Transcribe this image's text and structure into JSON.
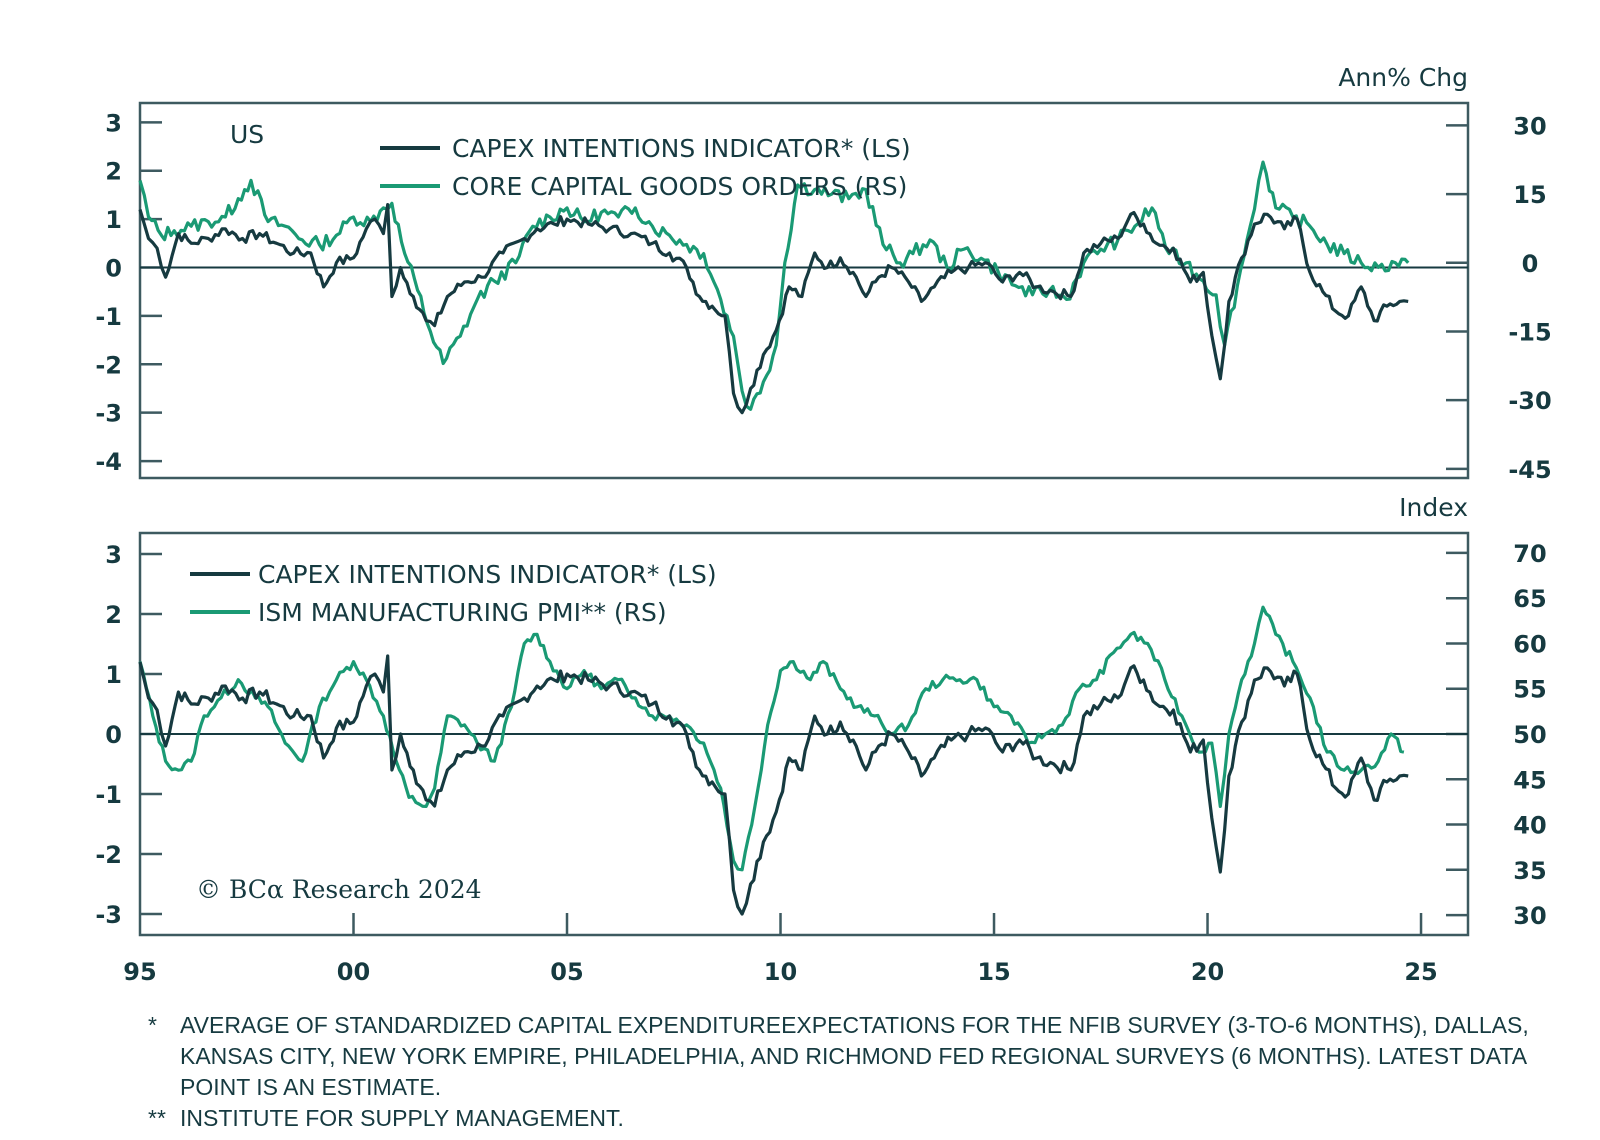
{
  "chart_data": [
    {
      "type": "line",
      "id": "top",
      "title": "",
      "region_label": "US",
      "right_unit_label": "Ann% Chg",
      "x_range": [
        1995,
        2026.1
      ],
      "xlabel": "",
      "y_left": {
        "range": [
          -4.35,
          3.4
        ],
        "ticks": [
          3,
          2,
          1,
          0,
          -1,
          -2,
          -3,
          -4
        ],
        "tick_labels": [
          "3",
          "2",
          "1",
          "0",
          "-1",
          "-2",
          "-3",
          "-4"
        ]
      },
      "y_right": {
        "range": [
          -47,
          34.9
        ],
        "ticks": [
          30,
          15,
          0,
          -15,
          -30,
          -45
        ],
        "tick_labels": [
          "30",
          "15",
          "0",
          "-15",
          "-30",
          "-45"
        ]
      },
      "zero_line": true,
      "legend": {
        "placement": "top-center",
        "entries": [
          {
            "label": "CAPEX INTENTIONS INDICATOR* (LS)",
            "color": "#163a40"
          },
          {
            "label": "CORE CAPITAL GOODS ORDERS (RS)",
            "color": "#1a9a74"
          }
        ]
      },
      "series": [
        {
          "name": "CAPEX INTENTIONS INDICATOR* (LS)",
          "axis": "left",
          "color": "#163a40",
          "x": [
            1995.0,
            1995.2,
            1995.4,
            1995.6,
            1995.9,
            1996.2,
            1996.6,
            1997.0,
            1997.4,
            1997.8,
            1998.2,
            1998.6,
            1999.0,
            1999.3,
            1999.6,
            2000.0,
            2000.3,
            2000.5,
            2000.7,
            2000.8,
            2000.9,
            2001.1,
            2001.4,
            2001.7,
            2001.9,
            2002.2,
            2002.6,
            2003.0,
            2003.5,
            2004.0,
            2004.3,
            2004.7,
            2005.0,
            2005.5,
            2006.0,
            2006.5,
            2007.0,
            2007.4,
            2007.8,
            2008.1,
            2008.4,
            2008.7,
            2008.9,
            2009.1,
            2009.3,
            2009.6,
            2009.9,
            2010.2,
            2010.5,
            2010.8,
            2011.1,
            2011.4,
            2011.7,
            2012.0,
            2012.3,
            2012.6,
            2013.0,
            2013.3,
            2013.6,
            2014.0,
            2014.4,
            2014.8,
            2015.2,
            2015.6,
            2016.0,
            2016.4,
            2016.8,
            2017.1,
            2017.5,
            2017.9,
            2018.2,
            2018.5,
            2018.8,
            2019.2,
            2019.6,
            2019.9,
            2020.1,
            2020.3,
            2020.5,
            2020.8,
            2021.1,
            2021.4,
            2021.8,
            2022.1,
            2022.4,
            2022.7,
            2023.0,
            2023.3,
            2023.6,
            2023.9,
            2024.2,
            2024.5,
            2024.7
          ],
          "y": [
            1.2,
            0.6,
            0.4,
            -0.2,
            0.7,
            0.5,
            0.6,
            0.8,
            0.6,
            0.7,
            0.5,
            0.3,
            0.3,
            -0.4,
            0.1,
            0.2,
            0.8,
            1.0,
            0.7,
            1.3,
            -0.6,
            0.0,
            -0.6,
            -1.1,
            -1.2,
            -0.6,
            -0.3,
            -0.2,
            0.3,
            0.6,
            0.8,
            0.9,
            1.0,
            0.9,
            0.8,
            0.7,
            0.5,
            0.3,
            0.0,
            -0.6,
            -0.8,
            -1.0,
            -2.6,
            -3.0,
            -2.5,
            -1.8,
            -1.3,
            -0.4,
            -0.6,
            0.3,
            0.0,
            0.2,
            -0.1,
            -0.6,
            -0.2,
            0.0,
            -0.3,
            -0.7,
            -0.4,
            -0.1,
            0.0,
            0.1,
            -0.3,
            -0.1,
            -0.4,
            -0.5,
            -0.6,
            0.3,
            0.5,
            0.6,
            1.1,
            0.9,
            0.5,
            0.4,
            -0.3,
            -0.1,
            -1.4,
            -2.3,
            -0.7,
            0.2,
            0.9,
            1.1,
            0.8,
            1.0,
            -0.1,
            -0.5,
            -0.9,
            -1.0,
            -0.4,
            -1.1,
            -0.8,
            -0.7,
            -0.7
          ]
        },
        {
          "name": "CORE CAPITAL GOODS ORDERS (RS)",
          "axis": "right",
          "color": "#1a9a74",
          "x": [
            1995.0,
            1995.2,
            1995.5,
            1995.8,
            1996.2,
            1996.6,
            1997.0,
            1997.3,
            1997.6,
            1998.0,
            1998.4,
            1998.8,
            1999.2,
            1999.6,
            2000.0,
            2000.4,
            2000.7,
            2000.9,
            2001.2,
            2001.5,
            2001.8,
            2002.1,
            2002.5,
            2002.9,
            2003.3,
            2003.8,
            2004.2,
            2004.6,
            2005.0,
            2005.4,
            2005.8,
            2006.2,
            2006.6,
            2007.0,
            2007.4,
            2007.8,
            2008.2,
            2008.6,
            2008.9,
            2009.1,
            2009.3,
            2009.6,
            2009.9,
            2010.1,
            2010.4,
            2010.8,
            2011.2,
            2011.6,
            2012.0,
            2012.4,
            2012.8,
            2013.1,
            2013.5,
            2013.9,
            2014.3,
            2014.7,
            2015.1,
            2015.5,
            2015.9,
            2016.3,
            2016.7,
            2017.1,
            2017.5,
            2017.9,
            2018.3,
            2018.7,
            2019.1,
            2019.5,
            2019.9,
            2020.2,
            2020.4,
            2020.7,
            2021.0,
            2021.2,
            2021.3,
            2021.6,
            2022.0,
            2022.4,
            2022.8,
            2023.2,
            2023.6,
            2024.0,
            2024.4,
            2024.7
          ],
          "y": [
            18,
            10,
            6,
            7,
            8,
            9,
            10,
            14,
            18,
            9,
            8,
            5,
            4,
            6,
            10,
            9,
            12,
            13,
            2,
            -6,
            -15,
            -22,
            -16,
            -8,
            -4,
            0,
            8,
            10,
            12,
            9,
            11,
            10,
            12,
            8,
            6,
            4,
            2,
            -8,
            -16,
            -28,
            -32,
            -26,
            -18,
            0,
            17,
            16,
            15,
            14,
            16,
            4,
            0,
            2,
            5,
            -1,
            3,
            1,
            -2,
            -5,
            -7,
            -6,
            -8,
            0,
            3,
            5,
            8,
            12,
            2,
            0,
            -4,
            -7,
            -18,
            -5,
            8,
            18,
            22,
            12,
            10,
            8,
            4,
            2,
            0,
            -1,
            0,
            0
          ]
        }
      ]
    },
    {
      "type": "line",
      "id": "bottom",
      "title": "",
      "right_unit_label": "Index",
      "x_range": [
        1995,
        2026.1
      ],
      "x_ticks": [
        1995,
        2000,
        2005,
        2010,
        2015,
        2020,
        2025
      ],
      "x_tick_labels": [
        "95",
        "00",
        "05",
        "10",
        "15",
        "20",
        "25"
      ],
      "y_left": {
        "range": [
          -3.35,
          3.35
        ],
        "ticks": [
          3,
          2,
          1,
          0,
          -1,
          -2,
          -3
        ],
        "tick_labels": [
          "3",
          "2",
          "1",
          "0",
          "-1",
          "-2",
          "-3"
        ]
      },
      "y_right": {
        "range": [
          27.8,
          72.2
        ],
        "ticks": [
          70,
          65,
          60,
          55,
          50,
          45,
          40,
          35,
          30
        ],
        "tick_labels": [
          "70",
          "65",
          "60",
          "55",
          "50",
          "45",
          "40",
          "35",
          "30"
        ]
      },
      "zero_line": true,
      "legend": {
        "placement": "top-left",
        "entries": [
          {
            "label": "CAPEX INTENTIONS INDICATOR* (LS)",
            "color": "#163a40"
          },
          {
            "label": "ISM MANUFACTURING PMI** (RS)",
            "color": "#1a9a74"
          }
        ]
      },
      "series": [
        {
          "name": "CAPEX INTENTIONS INDICATOR* (LS)",
          "axis": "left",
          "color": "#163a40",
          "x": [
            1995.0,
            1995.2,
            1995.4,
            1995.6,
            1995.9,
            1996.2,
            1996.6,
            1997.0,
            1997.4,
            1997.8,
            1998.2,
            1998.6,
            1999.0,
            1999.3,
            1999.6,
            2000.0,
            2000.3,
            2000.5,
            2000.7,
            2000.8,
            2000.9,
            2001.1,
            2001.4,
            2001.7,
            2001.9,
            2002.2,
            2002.6,
            2003.0,
            2003.5,
            2004.0,
            2004.3,
            2004.7,
            2005.0,
            2005.5,
            2006.0,
            2006.5,
            2007.0,
            2007.4,
            2007.8,
            2008.1,
            2008.4,
            2008.7,
            2008.9,
            2009.1,
            2009.3,
            2009.6,
            2009.9,
            2010.2,
            2010.5,
            2010.8,
            2011.1,
            2011.4,
            2011.7,
            2012.0,
            2012.3,
            2012.6,
            2013.0,
            2013.3,
            2013.6,
            2014.0,
            2014.4,
            2014.8,
            2015.2,
            2015.6,
            2016.0,
            2016.4,
            2016.8,
            2017.1,
            2017.5,
            2017.9,
            2018.2,
            2018.5,
            2018.8,
            2019.2,
            2019.6,
            2019.9,
            2020.1,
            2020.3,
            2020.5,
            2020.8,
            2021.1,
            2021.4,
            2021.8,
            2022.1,
            2022.4,
            2022.7,
            2023.0,
            2023.3,
            2023.6,
            2023.9,
            2024.2,
            2024.5,
            2024.7
          ],
          "y": [
            1.2,
            0.6,
            0.4,
            -0.2,
            0.7,
            0.5,
            0.6,
            0.8,
            0.6,
            0.7,
            0.5,
            0.3,
            0.3,
            -0.4,
            0.1,
            0.2,
            0.8,
            1.0,
            0.7,
            1.3,
            -0.6,
            0.0,
            -0.6,
            -1.1,
            -1.2,
            -0.6,
            -0.3,
            -0.2,
            0.3,
            0.6,
            0.8,
            0.9,
            1.0,
            0.9,
            0.8,
            0.7,
            0.5,
            0.3,
            0.0,
            -0.6,
            -0.8,
            -1.0,
            -2.6,
            -3.0,
            -2.5,
            -1.8,
            -1.3,
            -0.4,
            -0.6,
            0.3,
            0.0,
            0.2,
            -0.1,
            -0.6,
            -0.2,
            0.0,
            -0.3,
            -0.7,
            -0.4,
            -0.1,
            0.0,
            0.1,
            -0.3,
            -0.1,
            -0.4,
            -0.5,
            -0.6,
            0.3,
            0.5,
            0.6,
            1.1,
            0.9,
            0.5,
            0.4,
            -0.3,
            -0.1,
            -1.4,
            -2.3,
            -0.7,
            0.2,
            0.9,
            1.1,
            0.8,
            1.0,
            -0.1,
            -0.5,
            -0.9,
            -1.0,
            -0.4,
            -1.1,
            -0.8,
            -0.7,
            -0.7
          ]
        },
        {
          "name": "ISM MANUFACTURING PMI** (RS)",
          "axis": "right",
          "color": "#1a9a74",
          "x": [
            1995.0,
            1995.3,
            1995.6,
            1995.9,
            1996.2,
            1996.5,
            1996.9,
            1997.3,
            1997.7,
            1998.0,
            1998.4,
            1998.8,
            1999.2,
            1999.6,
            2000.0,
            2000.3,
            2000.7,
            2001.0,
            2001.3,
            2001.7,
            2001.9,
            2002.2,
            2002.6,
            2002.9,
            2003.3,
            2003.7,
            2004.0,
            2004.3,
            2004.6,
            2005.0,
            2005.4,
            2005.8,
            2006.2,
            2006.6,
            2007.0,
            2007.4,
            2007.8,
            2008.2,
            2008.6,
            2008.9,
            2009.1,
            2009.4,
            2009.7,
            2010.0,
            2010.3,
            2010.7,
            2011.0,
            2011.4,
            2011.8,
            2012.2,
            2012.6,
            2013.0,
            2013.4,
            2013.8,
            2014.2,
            2014.6,
            2015.0,
            2015.4,
            2015.8,
            2016.2,
            2016.6,
            2017.0,
            2017.4,
            2017.8,
            2018.2,
            2018.6,
            2019.0,
            2019.4,
            2019.8,
            2020.1,
            2020.3,
            2020.5,
            2020.8,
            2021.1,
            2021.3,
            2021.6,
            2022.0,
            2022.4,
            2022.8,
            2023.2,
            2023.6,
            2024.0,
            2024.3,
            2024.6
          ],
          "y": [
            58,
            52,
            47,
            46,
            47,
            52,
            54,
            56,
            54,
            53,
            49,
            47,
            53,
            56,
            58,
            56,
            52,
            47,
            43,
            42,
            44,
            52,
            51,
            49,
            47,
            53,
            60,
            61,
            58,
            55,
            57,
            55,
            56,
            54,
            52,
            52,
            51,
            49,
            44,
            36,
            35,
            42,
            51,
            57,
            58,
            56,
            58,
            55,
            53,
            52,
            50,
            51,
            55,
            56,
            56,
            56,
            53,
            52,
            49,
            50,
            51,
            55,
            56,
            59,
            61,
            60,
            56,
            52,
            48,
            49,
            42,
            50,
            56,
            60,
            64,
            61,
            58,
            54,
            48,
            46,
            46,
            47,
            50,
            48
          ]
        }
      ]
    }
  ],
  "watermark": "© BCα Research 2024",
  "footnotes": [
    {
      "mark": "*",
      "text": "AVERAGE OF STANDARDIZED CAPITAL EXPENDITUREEXPECTATIONS FOR THE NFIB SURVEY (3-TO-6 MONTHS), DALLAS, KANSAS CITY, NEW YORK EMPIRE, PHILADELPHIA, AND RICHMOND FED REGIONAL SURVEYS (6 MONTHS). LATEST DATA POINT IS AN ESTIMATE."
    },
    {
      "mark": "**",
      "text": "INSTITUTE FOR SUPPLY MANAGEMENT."
    }
  ]
}
